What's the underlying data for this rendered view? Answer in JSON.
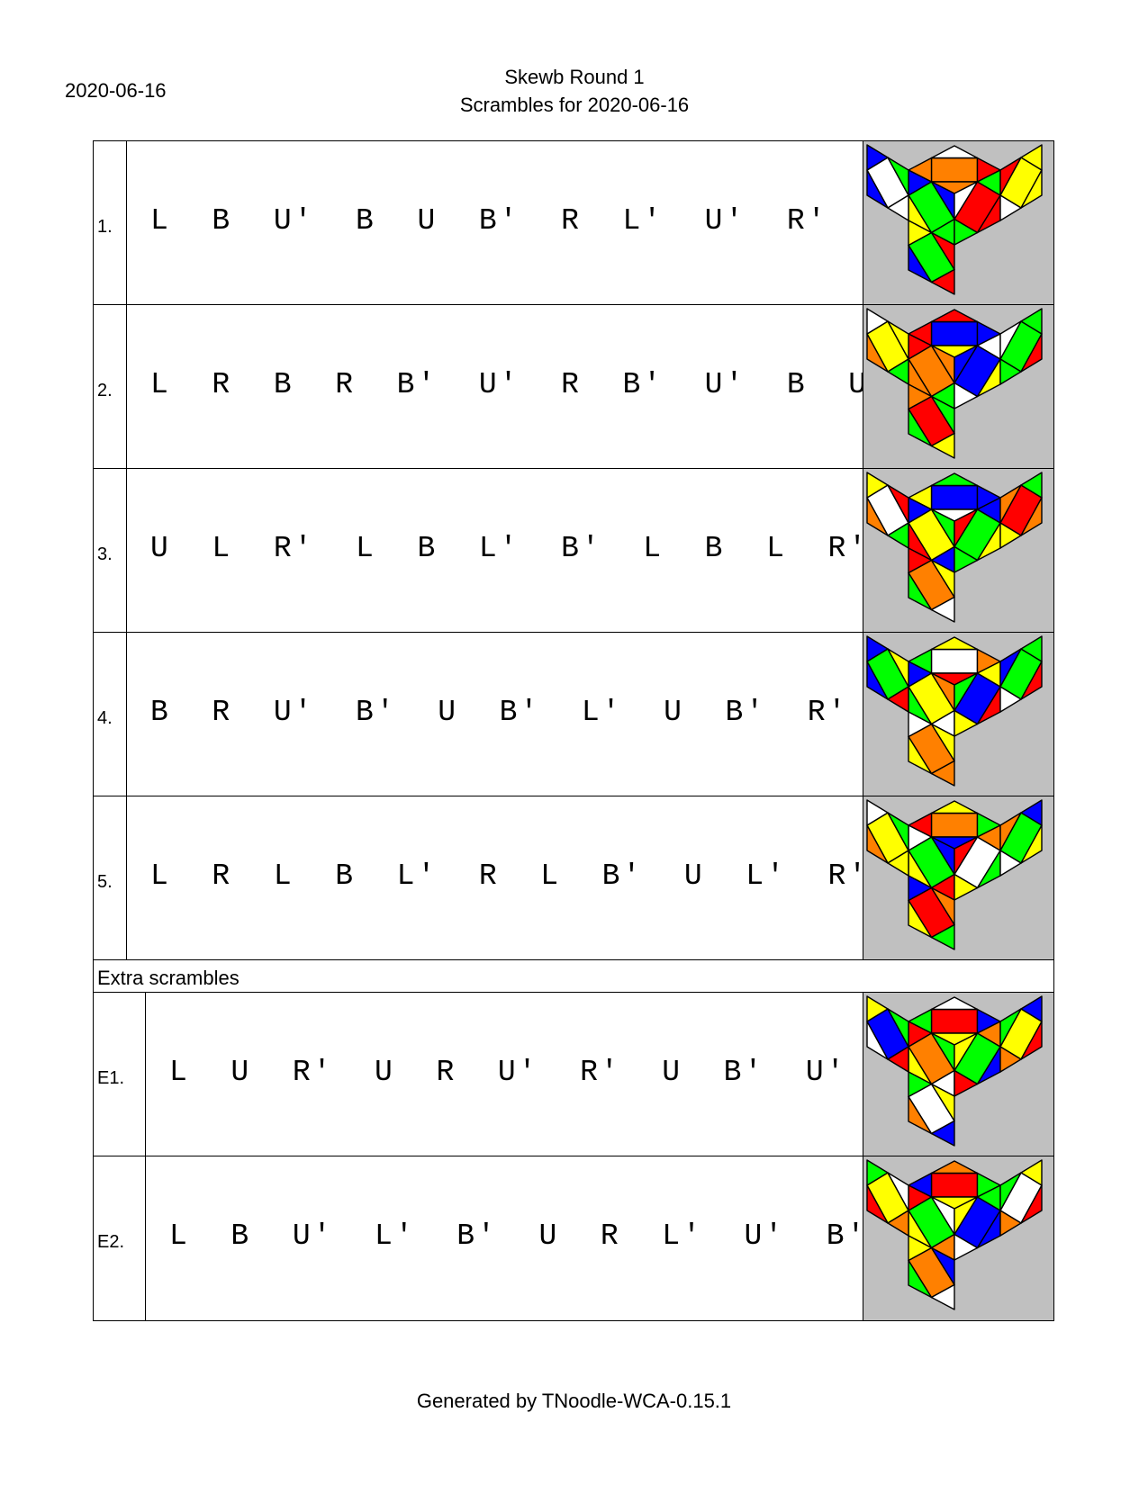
{
  "header": {
    "date": "2020-06-16",
    "title": "Skewb Round 1",
    "subtitle": "Scrambles for 2020-06-16"
  },
  "scrambles": [
    {
      "num": "1.",
      "moves": "L B U' B U B' R L' U' R' B'",
      "faces": {
        "U": [
          "O",
          "W",
          "R",
          "O",
          "O"
        ],
        "L": [
          "W",
          "Bl",
          "G",
          "W",
          "Bl"
        ],
        "F": [
          "G",
          "Bl",
          "Bl",
          "G",
          "Y"
        ],
        "R": [
          "R",
          "W",
          "G",
          "R",
          "G"
        ],
        "Rt": [
          "Y",
          "R",
          "Y",
          "Y",
          "W"
        ],
        "D": [
          "G",
          "Y",
          "R",
          "R",
          "Bl"
        ]
      }
    },
    {
      "num": "2.",
      "moves": "L R B R B' U' R B' U' B U'",
      "faces": {
        "U": [
          "Bl",
          "R",
          "Bl",
          "Y",
          "R"
        ],
        "L": [
          "Y",
          "W",
          "Y",
          "G",
          "O"
        ],
        "F": [
          "O",
          "R",
          "O",
          "G",
          "O"
        ],
        "R": [
          "Bl",
          "Bl",
          "W",
          "Y",
          "W"
        ],
        "Rt": [
          "G",
          "W",
          "G",
          "R",
          "G"
        ],
        "D": [
          "R",
          "O",
          "G",
          "Y",
          "G"
        ]
      }
    },
    {
      "num": "3.",
      "moves": "U L R' L B L' B' L B L R'",
      "faces": {
        "U": [
          "Bl",
          "G",
          "Bl",
          "W",
          "Y"
        ],
        "L": [
          "W",
          "Y",
          "R",
          "G",
          "O"
        ],
        "F": [
          "Y",
          "Bl",
          "G",
          "Bl",
          "R"
        ],
        "R": [
          "G",
          "R",
          "Bl",
          "Y",
          "G"
        ],
        "Rt": [
          "R",
          "O",
          "G",
          "O",
          "Y"
        ],
        "D": [
          "O",
          "R",
          "Y",
          "W",
          "G"
        ]
      }
    },
    {
      "num": "4.",
      "moves": "B R U' B' U B' L' U B' R' U'",
      "faces": {
        "U": [
          "W",
          "Y",
          "O",
          "R",
          "G"
        ],
        "L": [
          "G",
          "Bl",
          "Y",
          "R",
          "Bl"
        ],
        "F": [
          "Y",
          "Bl",
          "O",
          "W",
          "G"
        ],
        "R": [
          "Bl",
          "G",
          "Y",
          "R",
          "Y"
        ],
        "Rt": [
          "G",
          "Bl",
          "G",
          "R",
          "W"
        ],
        "D": [
          "O",
          "W",
          "Y",
          "O",
          "Y"
        ]
      }
    },
    {
      "num": "5.",
      "moves": "L R L B L' R L B' U L' R'",
      "faces": {
        "U": [
          "O",
          "Y",
          "G",
          "Bl",
          "R"
        ],
        "L": [
          "Y",
          "W",
          "G",
          "Y",
          "O"
        ],
        "F": [
          "G",
          "W",
          "Bl",
          "R",
          "Y"
        ],
        "R": [
          "W",
          "R",
          "O",
          "G",
          "Y"
        ],
        "Rt": [
          "G",
          "O",
          "Bl",
          "Y",
          "W"
        ],
        "D": [
          "R",
          "Bl",
          "O",
          "G",
          "Y"
        ]
      }
    }
  ],
  "extra_label": "Extra scrambles",
  "extras": [
    {
      "num": "E1.",
      "moves": "L U R' U R U' R' U B' U' R",
      "faces": {
        "U": [
          "R",
          "W",
          "Bl",
          "Y",
          "G"
        ],
        "L": [
          "Bl",
          "Y",
          "G",
          "R",
          "W"
        ],
        "F": [
          "O",
          "R",
          "G",
          "W",
          "Y"
        ],
        "R": [
          "G",
          "Y",
          "O",
          "Bl",
          "R"
        ],
        "Rt": [
          "Y",
          "G",
          "Bl",
          "R",
          "O"
        ],
        "D": [
          "W",
          "G",
          "Y",
          "Bl",
          "O"
        ]
      }
    },
    {
      "num": "E2.",
      "moves": "L B U' L' B' U R L' U' B' U",
      "faces": {
        "U": [
          "R",
          "O",
          "G",
          "Y",
          "Bl"
        ],
        "L": [
          "Y",
          "G",
          "W",
          "O",
          "R"
        ],
        "F": [
          "G",
          "R",
          "W",
          "O",
          "Y"
        ],
        "R": [
          "Bl",
          "Y",
          "G",
          "Bl",
          "W"
        ],
        "Rt": [
          "W",
          "G",
          "Y",
          "R",
          "O"
        ],
        "D": [
          "O",
          "Y",
          "Bl",
          "W",
          "G"
        ]
      }
    }
  ],
  "colors": {
    "W": "#ffffff",
    "Y": "#ffff00",
    "R": "#ff0000",
    "O": "#ff8000",
    "G": "#00ff00",
    "Bl": "#0000ff",
    "bg": "#c0c0c0"
  },
  "footer": "Generated by TNoodle-WCA-0.15.1"
}
